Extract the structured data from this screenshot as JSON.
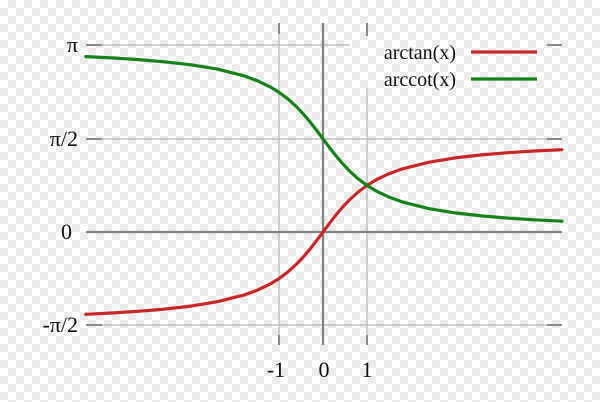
{
  "colors": {
    "checker_light": "#ffffff",
    "checker_dark": "#ebebeb",
    "grid_light": "#b4b4b4",
    "axis_gray": "#828282",
    "label_color": "#111111",
    "arctan_red": "#c62828",
    "arccot_green": "#16821a"
  },
  "chart_data": {
    "type": "line",
    "title": "",
    "xlabel": "",
    "ylabel": "",
    "grid": true,
    "legend_position": "top-right",
    "x_axis": {
      "tick_labels": [
        "-1",
        "0",
        "1"
      ],
      "tick_values": [
        -1,
        0,
        1
      ],
      "range": [
        -5.39,
        5.43
      ]
    },
    "y_axis": {
      "tick_labels": [
        "-π/2",
        "0",
        "π/2",
        "π"
      ],
      "tick_values": [
        -1.5708,
        0,
        1.5708,
        3.1416
      ],
      "range": [
        -1.91,
        3.53
      ]
    },
    "x": [
      -5.39,
      -4.8,
      -4.2,
      -3.6,
      -3,
      -2.4,
      -1.8,
      -1.5,
      -1.2,
      -1,
      -0.8,
      -0.6,
      -0.45,
      -0.3,
      -0.15,
      0,
      0.15,
      0.3,
      0.45,
      0.6,
      0.8,
      1,
      1.2,
      1.5,
      1.8,
      2.4,
      3,
      3.6,
      4.2,
      4.8,
      5.43
    ],
    "series": [
      {
        "name": "arctan(x)",
        "color": "#c62828",
        "values": [
          -1.3873,
          -1.3654,
          -1.3371,
          -1.2997,
          -1.249,
          -1.176,
          -1.0637,
          -0.9828,
          -0.8761,
          -0.7854,
          -0.6747,
          -0.5404,
          -0.4229,
          -0.2915,
          -0.1489,
          0,
          0.1489,
          0.2915,
          0.4229,
          0.5404,
          0.6747,
          0.7854,
          0.8761,
          0.9828,
          1.0637,
          1.176,
          1.249,
          1.2997,
          1.3371,
          1.3654,
          1.3886
        ]
      },
      {
        "name": "arccot(x)",
        "color": "#16821a",
        "values": [
          2.9581,
          2.9362,
          2.9079,
          2.8705,
          2.8198,
          2.7468,
          2.6345,
          2.5536,
          2.4469,
          2.3562,
          2.2455,
          2.1112,
          1.9937,
          1.8623,
          1.7197,
          1.5708,
          1.4219,
          1.2793,
          1.1479,
          1.0304,
          0.8961,
          0.7854,
          0.6947,
          0.588,
          0.5071,
          0.3948,
          0.3218,
          0.2711,
          0.2337,
          0.2054,
          0.1822
        ]
      }
    ]
  }
}
